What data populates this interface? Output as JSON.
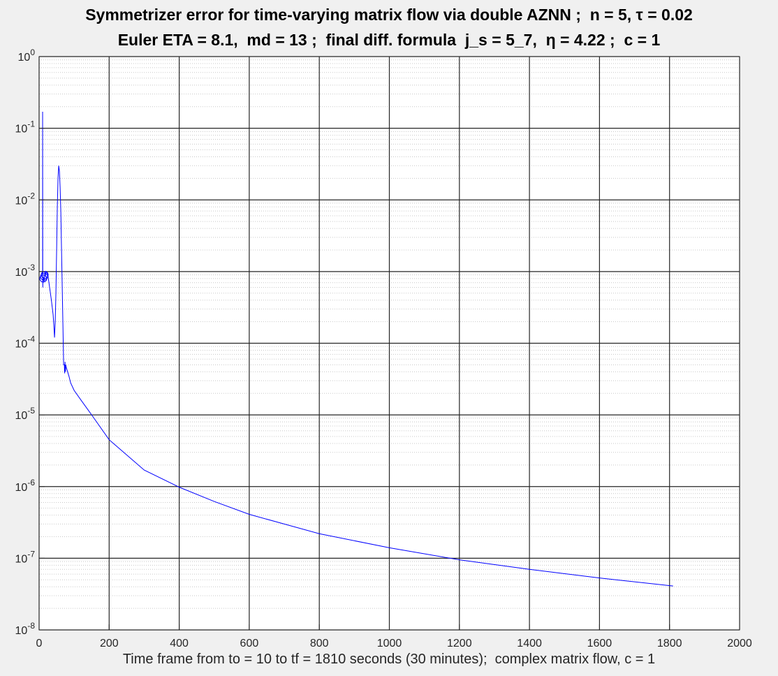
{
  "chart_data": {
    "type": "line",
    "title_line1": "Symmetrizer error for time-varying matrix flow via double AZNN ;  n = 5, τ = 0.02",
    "title_line2": "Euler ETA = 8.1,  md = 13 ;  final diff. formula  j_s = 5_7,  η = 4.22 ;  c = 1",
    "xlabel": "Time frame from to = 10 to tf = 1810 seconds (30 minutes);  complex matrix flow, c = 1",
    "ylabel": "",
    "xlim": [
      0,
      2000
    ],
    "ylim": [
      1e-08,
      1
    ],
    "yscale": "log",
    "grid": true,
    "minor_grid": true,
    "x_ticks": [
      "0",
      "200",
      "400",
      "600",
      "800",
      "1000",
      "1200",
      "1400",
      "1600",
      "1800",
      "2000"
    ],
    "y_tick_exponents": [
      "0",
      "-1",
      "-2",
      "-3",
      "-4",
      "-5",
      "-6",
      "-7",
      "-8"
    ],
    "series": [
      {
        "color": "#0000ff",
        "x": [
          10,
          10,
          10.5,
          11,
          12,
          13,
          14,
          15,
          16,
          16.5,
          17,
          17.5,
          18,
          20,
          25,
          30,
          35,
          40,
          42,
          44,
          46,
          48,
          50,
          52,
          54,
          56,
          58,
          60,
          62,
          64,
          66,
          68,
          70,
          72,
          73,
          74,
          75,
          76,
          78,
          80,
          85,
          90,
          100,
          120,
          150,
          200,
          300,
          400,
          500,
          600,
          700,
          800,
          1000,
          1200,
          1400,
          1600,
          1810
        ],
        "y": [
          0.0009,
          0.17,
          0.0006,
          0.0008,
          0.00085,
          0.00078,
          0.00072,
          0.00078,
          0.0009,
          0.001,
          0.00095,
          0.00085,
          0.0009,
          0.001,
          0.0009,
          0.0006,
          0.0004,
          0.00025,
          0.00018,
          0.00012,
          0.0002,
          0.0005,
          0.002,
          0.008,
          0.02,
          0.03,
          0.025,
          0.015,
          0.007,
          0.002,
          0.0006,
          0.00018,
          5e-05,
          5e-05,
          3.8e-05,
          5.5e-05,
          4e-05,
          5e-05,
          4.5e-05,
          4.2e-05,
          3.5e-05,
          2.8e-05,
          2.2e-05,
          1.6e-05,
          1e-05,
          4.5e-06,
          1.7e-06,
          9.8e-07,
          6.2e-07,
          4.1e-07,
          3e-07,
          2.2e-07,
          1.4e-07,
          9.5e-08,
          7e-08,
          5.3e-08,
          4.1e-08
        ]
      },
      {
        "color": "#0000ff",
        "marker": "circle",
        "x": [
          12,
          14,
          16
        ],
        "y": [
          0.0008,
          0.00085,
          0.0009
        ]
      }
    ]
  }
}
